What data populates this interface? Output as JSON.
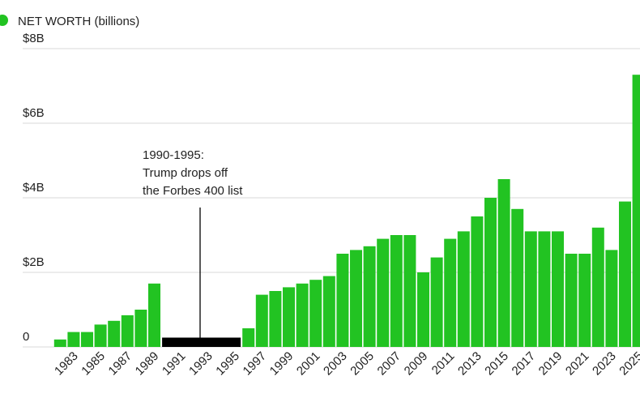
{
  "chart_data": {
    "type": "bar",
    "x": [
      1982,
      1983,
      1984,
      1985,
      1986,
      1987,
      1988,
      1989,
      1990,
      1991,
      1992,
      1993,
      1994,
      1995,
      1996,
      1997,
      1998,
      1999,
      2000,
      2001,
      2002,
      2003,
      2004,
      2005,
      2006,
      2007,
      2008,
      2009,
      2010,
      2011,
      2012,
      2013,
      2014,
      2015,
      2016,
      2017,
      2018,
      2019,
      2020,
      2021,
      2022,
      2023,
      2024,
      2025
    ],
    "series": [
      {
        "name": "NET WORTH (billions)",
        "color": "#22c322",
        "values": [
          0.2,
          0.4,
          0.4,
          0.6,
          0.7,
          0.85,
          1.0,
          1.7,
          null,
          null,
          null,
          null,
          null,
          null,
          0.5,
          1.4,
          1.5,
          1.6,
          1.7,
          1.8,
          1.9,
          2.5,
          2.6,
          2.7,
          2.9,
          3.0,
          3.0,
          2.0,
          2.4,
          2.9,
          3.1,
          3.5,
          4.0,
          4.5,
          3.7,
          3.1,
          3.1,
          3.1,
          2.5,
          2.5,
          3.2,
          2.6,
          3.9,
          7.3
        ]
      }
    ],
    "annotation": {
      "lines": [
        "1990-1995:",
        "Trump drops off",
        "the Forbes 400 list"
      ],
      "from": 1990,
      "to": 1995,
      "value": 0.25,
      "color": "#000000"
    },
    "xlim": [
      1981.5,
      2025.5
    ],
    "xticks": [
      1983,
      1985,
      1987,
      1989,
      1991,
      1993,
      1995,
      1997,
      1999,
      2001,
      2003,
      2005,
      2007,
      2009,
      2011,
      2013,
      2015,
      2017,
      2019,
      2021,
      2023,
      2025
    ],
    "ylim": [
      0,
      8
    ],
    "yticks": [
      0,
      {
        "value": 2,
        "label": "$2B"
      },
      {
        "value": 4,
        "label": "$4B"
      },
      {
        "value": 6,
        "label": "$6B"
      },
      {
        "value": 8,
        "label": "$8B"
      }
    ],
    "grid": true
  }
}
